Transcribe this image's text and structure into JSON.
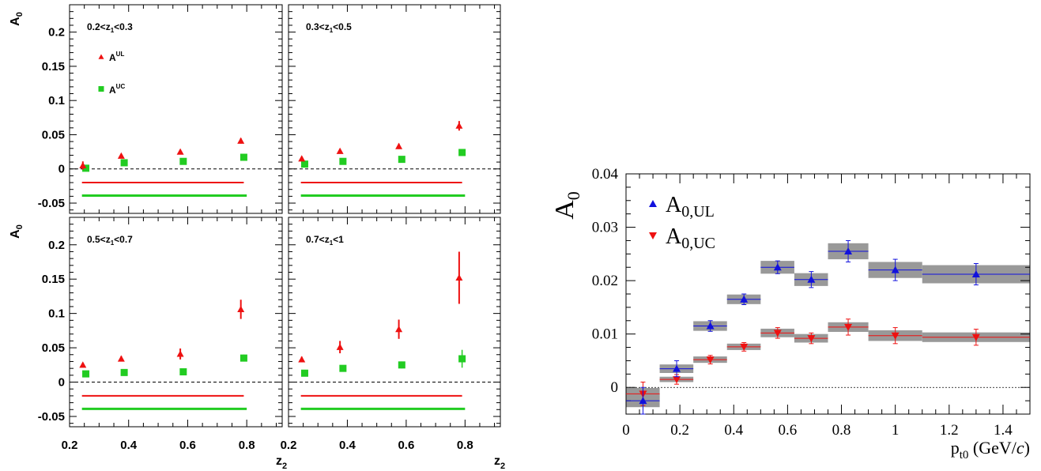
{
  "chart_data": [
    {
      "type": "scatter",
      "layout": "2x2 grid",
      "ylabel": "A",
      "ylabel_sub": "0",
      "xlabel": "z",
      "xlabel_sub": "2",
      "xlim": [
        0.2,
        0.92
      ],
      "ylim": [
        -0.065,
        0.24
      ],
      "x_ticks": [
        "0.2",
        "0.4",
        "0.6",
        "0.8"
      ],
      "y_ticks": [
        "-0.05",
        "0",
        "0.05",
        "0.1",
        "0.15",
        "0.2"
      ],
      "legend": [
        {
          "symbol": "triangle",
          "color": "#ee1111",
          "base": "A",
          "sup": "UL"
        },
        {
          "symbol": "square",
          "color": "#22cc22",
          "base": "A",
          "sup": "UC"
        }
      ],
      "panels": [
        {
          "label": {
            "pre": "0.2<z",
            "sub": "1",
            "post": "<0.3"
          },
          "ul": {
            "x": [
              0.245,
              0.375,
              0.575,
              0.78
            ],
            "y": [
              0.005,
              0.019,
              0.025,
              0.041
            ],
            "err": [
              0.006,
              0.003,
              0.003,
              0.004
            ]
          },
          "uc": {
            "x": [
              0.255,
              0.385,
              0.585,
              0.79
            ],
            "y": [
              0.001,
              0.009,
              0.011,
              0.017
            ],
            "err": [
              0.003,
              0.002,
              0.002,
              0.002
            ]
          },
          "ul_syst": -0.02,
          "uc_syst": -0.039
        },
        {
          "label": {
            "pre": "0.3<z",
            "sub": "1",
            "post": "<0.5"
          },
          "ul": {
            "x": [
              0.245,
              0.375,
              0.575,
              0.78
            ],
            "y": [
              0.015,
              0.026,
              0.033,
              0.063
            ],
            "err": [
              0.003,
              0.003,
              0.004,
              0.007
            ]
          },
          "uc": {
            "x": [
              0.255,
              0.385,
              0.585,
              0.79
            ],
            "y": [
              0.007,
              0.011,
              0.014,
              0.024
            ],
            "err": [
              0.002,
              0.002,
              0.002,
              0.003
            ]
          },
          "ul_syst": -0.02,
          "uc_syst": -0.039
        },
        {
          "label": {
            "pre": "0.5<z",
            "sub": "1",
            "post": "<0.7"
          },
          "ul": {
            "x": [
              0.245,
              0.375,
              0.575,
              0.78
            ],
            "y": [
              0.025,
              0.034,
              0.041,
              0.106
            ],
            "err": [
              0.003,
              0.004,
              0.008,
              0.014
            ]
          },
          "uc": {
            "x": [
              0.255,
              0.385,
              0.585,
              0.79
            ],
            "y": [
              0.012,
              0.014,
              0.015,
              0.035
            ],
            "err": [
              0.003,
              0.003,
              0.004,
              0.005
            ]
          },
          "ul_syst": -0.02,
          "uc_syst": -0.039
        },
        {
          "label": {
            "pre": "0.7<z",
            "sub": "1",
            "post": "<1"
          },
          "ul": {
            "x": [
              0.245,
              0.375,
              0.575,
              0.78
            ],
            "y": [
              0.033,
              0.051,
              0.077,
              0.152
            ],
            "err": [
              0.004,
              0.009,
              0.014,
              0.038
            ]
          },
          "uc": {
            "x": [
              0.255,
              0.385,
              0.585,
              0.79
            ],
            "y": [
              0.013,
              0.02,
              0.025,
              0.034
            ],
            "err": [
              0.003,
              0.003,
              0.005,
              0.013
            ]
          },
          "ul_syst": -0.02,
          "uc_syst": -0.039
        }
      ]
    },
    {
      "type": "scatter",
      "ylabel": "A",
      "ylabel_sub": "0",
      "xlabel_sub": "t0",
      "xlabel_post": " (GeV/",
      "xlabel_italic": "c",
      "xlabel_close": ")",
      "xlim": [
        0,
        1.5
      ],
      "ylim": [
        -0.005,
        0.04
      ],
      "x_ticks": [
        "0",
        "0.2",
        "0.4",
        "0.6",
        "0.8",
        "1",
        "1.2",
        "1.4"
      ],
      "y_ticks": [
        "0",
        "0.01",
        "0.02",
        "0.03",
        "0.04"
      ],
      "legend": [
        {
          "symbol": "triangle-up",
          "color": "#1111dd",
          "base": "A",
          "sub": "0,UL"
        },
        {
          "symbol": "triangle-down",
          "color": "#ee1111",
          "base": "A",
          "sub": "0,UC"
        }
      ],
      "bins": [
        [
          0,
          0.125
        ],
        [
          0.125,
          0.25
        ],
        [
          0.25,
          0.375
        ],
        [
          0.375,
          0.5
        ],
        [
          0.5,
          0.625
        ],
        [
          0.625,
          0.75
        ],
        [
          0.75,
          0.9
        ],
        [
          0.9,
          1.1
        ],
        [
          1.1,
          1.5
        ]
      ],
      "ul": {
        "x": [
          0.063,
          0.188,
          0.313,
          0.438,
          0.563,
          0.688,
          0.825,
          1.0,
          1.3
        ],
        "y": [
          -0.0025,
          0.0035,
          0.0115,
          0.0165,
          0.0225,
          0.0202,
          0.0255,
          0.022,
          0.0212
        ],
        "err": [
          0.0025,
          0.0015,
          0.001,
          0.001,
          0.0012,
          0.0015,
          0.002,
          0.002,
          0.002
        ],
        "syst": [
          0.0012,
          0.0008,
          0.0009,
          0.0009,
          0.0012,
          0.0012,
          0.0015,
          0.0015,
          0.0017
        ]
      },
      "uc": {
        "x": [
          0.063,
          0.188,
          0.313,
          0.438,
          0.563,
          0.688,
          0.825,
          1.0,
          1.3
        ],
        "y": [
          -0.0012,
          0.0015,
          0.0052,
          0.0076,
          0.0102,
          0.0092,
          0.0113,
          0.0097,
          0.0094
        ],
        "err": [
          0.0022,
          0.0009,
          0.0008,
          0.0008,
          0.001,
          0.001,
          0.0015,
          0.0015,
          0.0015
        ],
        "syst": [
          0.0011,
          0.0005,
          0.0006,
          0.0006,
          0.0008,
          0.0008,
          0.0009,
          0.001,
          0.0009
        ]
      }
    }
  ]
}
